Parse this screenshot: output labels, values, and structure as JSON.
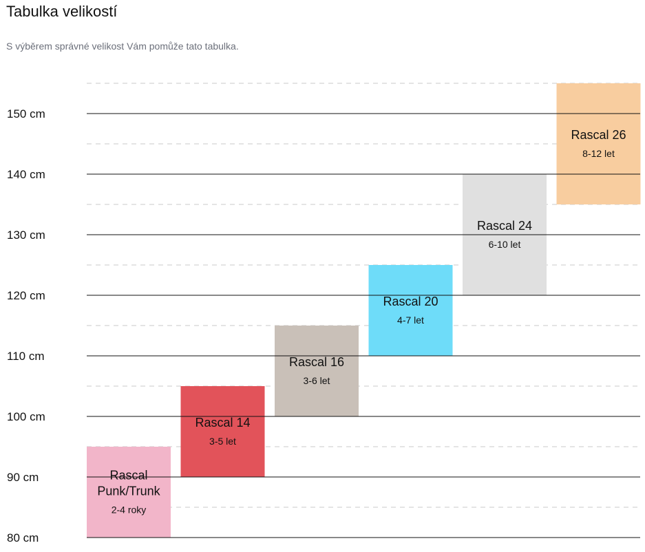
{
  "page": {
    "title": "Tabulka velikostí",
    "subtitle": "S výběrem správné velikost Vám pomůže tato tabulka."
  },
  "chart_data": {
    "type": "bar",
    "title": "Tabulka velikostí",
    "subtitle": "S výběrem správné velikost Vám pomůže tato tabulka.",
    "ylabel": "",
    "xlabel": "",
    "ylim": [
      80,
      155
    ],
    "y_ticks": [
      {
        "value": 80,
        "label": "80 cm"
      },
      {
        "value": 90,
        "label": "90 cm"
      },
      {
        "value": 100,
        "label": "100 cm"
      },
      {
        "value": 110,
        "label": "110 cm"
      },
      {
        "value": 120,
        "label": "120 cm"
      },
      {
        "value": 130,
        "label": "130 cm"
      },
      {
        "value": 140,
        "label": "140 cm"
      },
      {
        "value": 150,
        "label": "150 cm"
      }
    ],
    "grid": true,
    "minor_grid": "dashed",
    "bars": [
      {
        "name_lines": [
          "Rascal",
          "Punk/Trunk"
        ],
        "age": "2-4 roky",
        "min": 80,
        "max": 95,
        "color": "#f2b5c9"
      },
      {
        "name_lines": [
          "Rascal 14"
        ],
        "age": "3-5 let",
        "min": 90,
        "max": 105,
        "color": "#e2535a"
      },
      {
        "name_lines": [
          "Rascal 16"
        ],
        "age": "3-6 let",
        "min": 100,
        "max": 115,
        "color": "#c9c0b8"
      },
      {
        "name_lines": [
          "Rascal 20"
        ],
        "age": "4-7 let",
        "min": 110,
        "max": 125,
        "color": "#6edcf9"
      },
      {
        "name_lines": [
          "Rascal 24"
        ],
        "age": "6-10 let",
        "min": 120,
        "max": 140,
        "color": "#e0e0e0"
      },
      {
        "name_lines": [
          "Rascal 26"
        ],
        "age": "8-12 let",
        "min": 135,
        "max": 155,
        "color": "#f8cd9f"
      }
    ]
  }
}
